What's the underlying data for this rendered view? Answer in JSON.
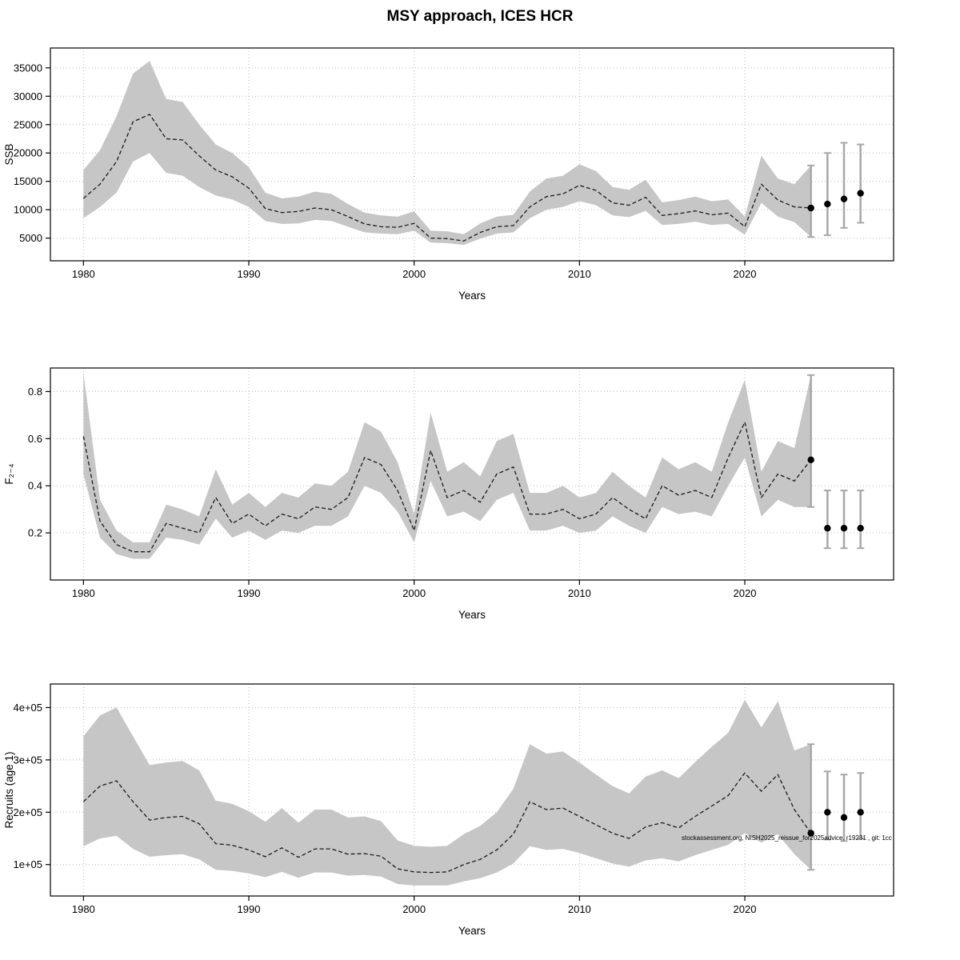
{
  "title": "MSY approach, ICES HCR",
  "watermark": "stockassessment.org, NISH2025_reissue_for2025advice, r19231 , git: 1cc",
  "colors": {
    "band": "#c6c6c6",
    "line": "#1a1a1a",
    "errorbar": "#a8a8a8",
    "grid": "#b9b9b9",
    "point": "#000000"
  },
  "chart_data": [
    {
      "type": "line",
      "name": "ssb",
      "ylabel": "SSB",
      "xlabel": "Years",
      "grid": true,
      "legend": "none",
      "xlim": [
        1978,
        2029
      ],
      "ylim": [
        1000,
        38500
      ],
      "xticks": [
        1980,
        1990,
        2000,
        2010,
        2020
      ],
      "yticks": [
        5000,
        10000,
        15000,
        20000,
        25000,
        30000,
        35000
      ],
      "ytick_labels": [
        "5000",
        "10000",
        "15000",
        "20000",
        "25000",
        "30000",
        "35000"
      ],
      "x": [
        1980,
        1981,
        1982,
        1983,
        1984,
        1985,
        1986,
        1987,
        1988,
        1989,
        1990,
        1991,
        1992,
        1993,
        1994,
        1995,
        1996,
        1997,
        1998,
        1999,
        2000,
        2001,
        2002,
        2003,
        2004,
        2005,
        2006,
        2007,
        2008,
        2009,
        2010,
        2011,
        2012,
        2013,
        2014,
        2015,
        2016,
        2017,
        2018,
        2019,
        2020,
        2021,
        2022,
        2023,
        2024
      ],
      "median": [
        12000,
        14500,
        18500,
        25500,
        26800,
        22500,
        22300,
        19500,
        17000,
        15800,
        13800,
        10200,
        9500,
        9700,
        10300,
        10000,
        8800,
        7500,
        7000,
        6900,
        7600,
        5000,
        4900,
        4500,
        6000,
        7000,
        7200,
        10500,
        12300,
        12800,
        14300,
        13400,
        11200,
        10800,
        12200,
        9000,
        9300,
        9800,
        9100,
        9400,
        7000,
        14500,
        11700,
        10500,
        10300
      ],
      "lower": [
        8500,
        10500,
        13000,
        18500,
        20000,
        16500,
        16000,
        14000,
        12500,
        11800,
        10500,
        8000,
        7500,
        7600,
        8200,
        8000,
        7000,
        6000,
        5800,
        5700,
        6300,
        4200,
        4100,
        3800,
        4900,
        5800,
        6000,
        8500,
        10000,
        10500,
        11500,
        10800,
        9000,
        8700,
        9800,
        7300,
        7500,
        7900,
        7300,
        7500,
        5600,
        11200,
        8800,
        7800,
        5200
      ],
      "upper": [
        17000,
        20500,
        26500,
        34000,
        36200,
        29500,
        29000,
        25000,
        21500,
        20000,
        17500,
        13000,
        12000,
        12300,
        13200,
        12800,
        11000,
        9500,
        9000,
        8800,
        9700,
        6300,
        6200,
        5700,
        7600,
        8800,
        9100,
        13200,
        15500,
        16000,
        18000,
        16800,
        14000,
        13500,
        15300,
        11300,
        11700,
        12300,
        11500,
        11800,
        8800,
        19500,
        15500,
        14500,
        17800
      ],
      "forecast": {
        "x": [
          2024,
          2025,
          2026,
          2027
        ],
        "values": [
          10300,
          11000,
          11900,
          12900
        ],
        "lo": [
          5200,
          5500,
          6800,
          7700
        ],
        "hi": [
          17800,
          20000,
          21800,
          21500
        ]
      }
    },
    {
      "type": "line",
      "name": "fishing-mortality",
      "ylabel": "F₂₋₄",
      "xlabel": "Years",
      "grid": true,
      "legend": "none",
      "xlim": [
        1978,
        2029
      ],
      "ylim": [
        0,
        0.9
      ],
      "xticks": [
        1980,
        1990,
        2000,
        2010,
        2020
      ],
      "yticks": [
        0.2,
        0.4,
        0.6,
        0.8
      ],
      "ytick_labels": [
        "0.2",
        "0.4",
        "0.6",
        "0.8"
      ],
      "x": [
        1980,
        1981,
        1982,
        1983,
        1984,
        1985,
        1986,
        1987,
        1988,
        1989,
        1990,
        1991,
        1992,
        1993,
        1994,
        1995,
        1996,
        1997,
        1998,
        1999,
        2000,
        2001,
        2002,
        2003,
        2004,
        2005,
        2006,
        2007,
        2008,
        2009,
        2010,
        2011,
        2012,
        2013,
        2014,
        2015,
        2016,
        2017,
        2018,
        2019,
        2020,
        2021,
        2022,
        2023,
        2024
      ],
      "median": [
        0.61,
        0.25,
        0.15,
        0.12,
        0.12,
        0.24,
        0.22,
        0.2,
        0.35,
        0.24,
        0.28,
        0.23,
        0.28,
        0.26,
        0.31,
        0.3,
        0.35,
        0.52,
        0.49,
        0.38,
        0.21,
        0.55,
        0.35,
        0.38,
        0.33,
        0.45,
        0.48,
        0.28,
        0.28,
        0.3,
        0.26,
        0.28,
        0.35,
        0.3,
        0.26,
        0.4,
        0.36,
        0.38,
        0.35,
        0.52,
        0.67,
        0.35,
        0.45,
        0.42,
        0.51
      ],
      "lower": [
        0.45,
        0.18,
        0.11,
        0.09,
        0.09,
        0.18,
        0.17,
        0.15,
        0.26,
        0.18,
        0.21,
        0.17,
        0.21,
        0.2,
        0.23,
        0.23,
        0.27,
        0.4,
        0.37,
        0.29,
        0.16,
        0.42,
        0.27,
        0.29,
        0.25,
        0.34,
        0.37,
        0.21,
        0.21,
        0.23,
        0.2,
        0.21,
        0.27,
        0.23,
        0.2,
        0.31,
        0.28,
        0.29,
        0.27,
        0.4,
        0.52,
        0.27,
        0.34,
        0.31,
        0.31
      ],
      "upper": [
        0.88,
        0.34,
        0.21,
        0.16,
        0.16,
        0.32,
        0.3,
        0.27,
        0.47,
        0.32,
        0.37,
        0.31,
        0.37,
        0.35,
        0.41,
        0.4,
        0.46,
        0.67,
        0.63,
        0.5,
        0.28,
        0.71,
        0.46,
        0.5,
        0.44,
        0.59,
        0.62,
        0.37,
        0.37,
        0.4,
        0.35,
        0.37,
        0.46,
        0.4,
        0.35,
        0.52,
        0.47,
        0.5,
        0.46,
        0.67,
        0.85,
        0.46,
        0.59,
        0.56,
        0.87
      ],
      "forecast": {
        "x": [
          2024,
          2025,
          2026,
          2027
        ],
        "values": [
          0.51,
          0.22,
          0.22,
          0.22
        ],
        "lo": [
          0.31,
          0.135,
          0.135,
          0.135
        ],
        "hi": [
          0.87,
          0.38,
          0.38,
          0.38
        ]
      }
    },
    {
      "type": "line",
      "name": "recruitment",
      "ylabel": "Recruits (age 1)",
      "xlabel": "Years",
      "grid": true,
      "legend": "none",
      "xlim": [
        1978,
        2029
      ],
      "ylim": [
        40000,
        445000
      ],
      "xticks": [
        1980,
        1990,
        2000,
        2010,
        2020
      ],
      "yticks": [
        100000,
        200000,
        300000,
        400000
      ],
      "ytick_labels": [
        "1e+05",
        "2e+05",
        "3e+05",
        "4e+05"
      ],
      "x": [
        1980,
        1981,
        1982,
        1983,
        1984,
        1985,
        1986,
        1987,
        1988,
        1989,
        1990,
        1991,
        1992,
        1993,
        1994,
        1995,
        1996,
        1997,
        1998,
        1999,
        2000,
        2001,
        2002,
        2003,
        2004,
        2005,
        2006,
        2007,
        2008,
        2009,
        2010,
        2011,
        2012,
        2013,
        2014,
        2015,
        2016,
        2017,
        2018,
        2019,
        2020,
        2021,
        2022,
        2023,
        2024
      ],
      "median": [
        220000,
        250000,
        260000,
        220000,
        185000,
        190000,
        192000,
        178000,
        140000,
        137000,
        128000,
        115000,
        132000,
        114000,
        130000,
        130000,
        120000,
        121000,
        116000,
        92000,
        86000,
        85000,
        86000,
        100000,
        110000,
        128000,
        158000,
        220000,
        205000,
        208000,
        192000,
        176000,
        160000,
        150000,
        172000,
        180000,
        170000,
        192000,
        212000,
        232000,
        275000,
        240000,
        272000,
        205000,
        160000
      ],
      "lower": [
        135000,
        150000,
        155000,
        130000,
        115000,
        118000,
        120000,
        110000,
        90000,
        88000,
        83000,
        76000,
        86000,
        75000,
        85000,
        85000,
        79000,
        80000,
        77000,
        63000,
        60000,
        60000,
        60000,
        68000,
        74000,
        85000,
        102000,
        135000,
        128000,
        130000,
        122000,
        112000,
        102000,
        96000,
        108000,
        112000,
        106000,
        118000,
        128000,
        138000,
        160000,
        142000,
        158000,
        120000,
        90000
      ],
      "upper": [
        345000,
        385000,
        400000,
        345000,
        290000,
        295000,
        298000,
        280000,
        222000,
        216000,
        202000,
        182000,
        208000,
        180000,
        205000,
        205000,
        190000,
        192000,
        183000,
        146000,
        136000,
        134000,
        136000,
        158000,
        174000,
        200000,
        245000,
        330000,
        312000,
        316000,
        295000,
        272000,
        250000,
        236000,
        268000,
        280000,
        265000,
        296000,
        325000,
        352000,
        415000,
        362000,
        412000,
        318000,
        330000
      ],
      "forecast": {
        "x": [
          2024,
          2025,
          2026,
          2027
        ],
        "values": [
          160000,
          200000,
          190000,
          200000
        ],
        "lo": [
          90000,
          148000,
          145000,
          150000
        ],
        "hi": [
          330000,
          278000,
          272000,
          275000
        ]
      }
    }
  ]
}
